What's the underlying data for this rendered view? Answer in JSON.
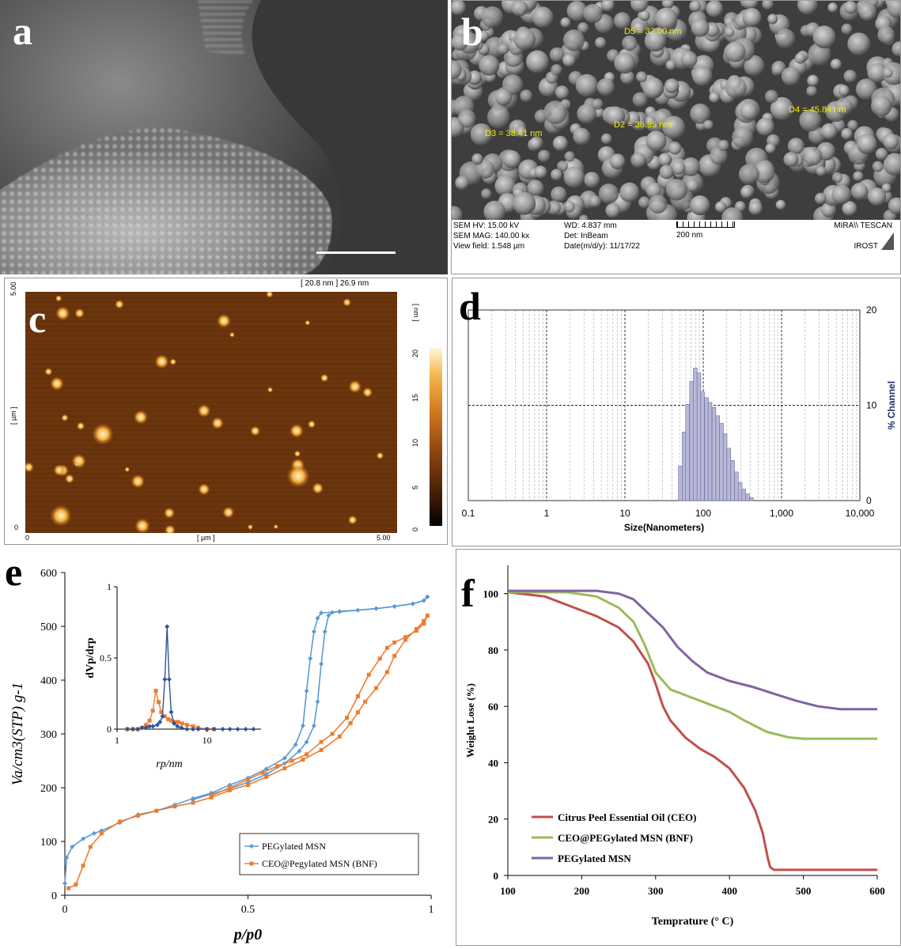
{
  "panels": {
    "a": {
      "label": "a"
    },
    "b": {
      "label": "b",
      "measurements": [
        "D5 = 32.00 nm",
        "D4 = 45.84 nm",
        "D3 = 38.41 nm",
        "D2 = 36.95 nm"
      ],
      "info": {
        "sem_hv": "SEM HV: 15.00 kV",
        "sem_mag": "SEM MAG: 140.00 kx",
        "view_field": "View field: 1.548 µm",
        "wd": "WD: 4.837 mm",
        "det": "Det: InBeam",
        "date": "Date(m/d/y): 11/17/22",
        "scale": "200 nm",
        "brand": "MIRA\\\\ TESCAN",
        "brand2": "IROST"
      }
    },
    "c": {
      "label": "c",
      "top_text": "[ 20.8 nm ] 26.9 nm",
      "x_unit": "[ µm ]",
      "y_unit": "[ µm ]",
      "colorbar_unit": "[ nm ]",
      "x_ticks": [
        "0",
        "5.00"
      ],
      "y_ticks": [
        "5.00",
        "0"
      ],
      "colorbar_ticks": [
        "20",
        "15",
        "10",
        "5",
        "0"
      ]
    },
    "d": {
      "label": "d"
    },
    "e": {
      "label": "e"
    },
    "f": {
      "label": "f"
    }
  },
  "chart_data": [
    {
      "panel": "d",
      "type": "bar",
      "xlabel": "Size(Nanometers)",
      "ylabel": "% Channel",
      "xscale": "log",
      "xlim": [
        0.1,
        10000
      ],
      "ylim": [
        0,
        20
      ],
      "x_ticks": [
        "0.1",
        "1",
        "10",
        "100",
        "1,000",
        "10,000"
      ],
      "y_ticks": [
        "0",
        "10",
        "20"
      ],
      "bins": [
        {
          "x": 51,
          "y": 3.6
        },
        {
          "x": 57,
          "y": 7.2
        },
        {
          "x": 63,
          "y": 10.1
        },
        {
          "x": 71,
          "y": 12.5
        },
        {
          "x": 79,
          "y": 13.9
        },
        {
          "x": 88,
          "y": 13.4
        },
        {
          "x": 98,
          "y": 11.4
        },
        {
          "x": 110,
          "y": 10.8
        },
        {
          "x": 122,
          "y": 10.3
        },
        {
          "x": 137,
          "y": 9.8
        },
        {
          "x": 153,
          "y": 8.9
        },
        {
          "x": 171,
          "y": 8.1
        },
        {
          "x": 190,
          "y": 7.0
        },
        {
          "x": 212,
          "y": 5.5
        },
        {
          "x": 237,
          "y": 4.2
        },
        {
          "x": 265,
          "y": 3.0
        },
        {
          "x": 296,
          "y": 1.9
        },
        {
          "x": 330,
          "y": 1.2
        },
        {
          "x": 368,
          "y": 0.7
        },
        {
          "x": 411,
          "y": 0.3
        }
      ]
    },
    {
      "panel": "e",
      "type": "line",
      "xlabel": "p/p0",
      "ylabel": "Va/cm3(STP) g-1",
      "xlim": [
        0,
        1
      ],
      "ylim": [
        0,
        600
      ],
      "x_ticks": [
        "0",
        "0.5",
        "1"
      ],
      "y_ticks": [
        "0",
        "100",
        "200",
        "300",
        "400",
        "500",
        "600"
      ],
      "legend": "bottom-right",
      "series": [
        {
          "name": "PEGylated MSN",
          "color": "#5b9bd5",
          "adsorption": [
            [
              0.0,
              22
            ],
            [
              0.005,
              70
            ],
            [
              0.02,
              90
            ],
            [
              0.05,
              105
            ],
            [
              0.08,
              115
            ],
            [
              0.1,
              120
            ],
            [
              0.15,
              135
            ],
            [
              0.2,
              150
            ],
            [
              0.25,
              157
            ],
            [
              0.3,
              168
            ],
            [
              0.35,
              180
            ],
            [
              0.4,
              190
            ],
            [
              0.45,
              205
            ],
            [
              0.5,
              218
            ],
            [
              0.55,
              235
            ],
            [
              0.6,
              255
            ],
            [
              0.63,
              280
            ],
            [
              0.65,
              315
            ],
            [
              0.66,
              380
            ],
            [
              0.67,
              440
            ],
            [
              0.68,
              490
            ],
            [
              0.69,
              515
            ],
            [
              0.7,
              525
            ],
            [
              0.75,
              527
            ],
            [
              0.8,
              530
            ],
            [
              0.85,
              533
            ],
            [
              0.9,
              537
            ],
            [
              0.95,
              542
            ],
            [
              0.98,
              548
            ],
            [
              0.99,
              555
            ]
          ],
          "desorption": [
            [
              0.99,
              555
            ],
            [
              0.98,
              548
            ],
            [
              0.95,
              542
            ],
            [
              0.9,
              537
            ],
            [
              0.85,
              533
            ],
            [
              0.8,
              530
            ],
            [
              0.75,
              528
            ],
            [
              0.73,
              526
            ],
            [
              0.72,
              520
            ],
            [
              0.71,
              490
            ],
            [
              0.7,
              430
            ],
            [
              0.69,
              360
            ],
            [
              0.68,
              315
            ],
            [
              0.66,
              285
            ],
            [
              0.64,
              268
            ],
            [
              0.6,
              245
            ],
            [
              0.55,
              225
            ],
            [
              0.5,
              210
            ],
            [
              0.45,
              198
            ],
            [
              0.4,
              188
            ],
            [
              0.35,
              178
            ]
          ]
        },
        {
          "name": "CEO@Pegylated MSN (BNF)",
          "color": "#ed7d31",
          "adsorption": [
            [
              0.01,
              13
            ],
            [
              0.03,
              20
            ],
            [
              0.05,
              55
            ],
            [
              0.07,
              90
            ],
            [
              0.1,
              115
            ],
            [
              0.15,
              137
            ],
            [
              0.2,
              148
            ],
            [
              0.25,
              157
            ],
            [
              0.3,
              165
            ],
            [
              0.35,
              172
            ],
            [
              0.4,
              182
            ],
            [
              0.45,
              195
            ],
            [
              0.5,
              205
            ],
            [
              0.55,
              220
            ],
            [
              0.6,
              236
            ],
            [
              0.65,
              252
            ],
            [
              0.7,
              270
            ],
            [
              0.75,
              295
            ],
            [
              0.78,
              320
            ],
            [
              0.8,
              340
            ],
            [
              0.82,
              360
            ],
            [
              0.85,
              385
            ],
            [
              0.88,
              415
            ],
            [
              0.9,
              445
            ],
            [
              0.93,
              475
            ],
            [
              0.96,
              495
            ],
            [
              0.98,
              510
            ],
            [
              0.99,
              520
            ]
          ],
          "desorption": [
            [
              0.99,
              520
            ],
            [
              0.98,
              505
            ],
            [
              0.96,
              492
            ],
            [
              0.93,
              480
            ],
            [
              0.9,
              470
            ],
            [
              0.88,
              460
            ],
            [
              0.86,
              440
            ],
            [
              0.83,
              410
            ],
            [
              0.8,
              370
            ],
            [
              0.77,
              330
            ],
            [
              0.73,
              300
            ],
            [
              0.7,
              285
            ],
            [
              0.66,
              262
            ],
            [
              0.62,
              250
            ],
            [
              0.58,
              240
            ],
            [
              0.54,
              228
            ],
            [
              0.5,
              215
            ],
            [
              0.45,
              200
            ],
            [
              0.4,
              185
            ]
          ]
        }
      ],
      "inset": {
        "xlabel": "rp/nm",
        "ylabel": "dVp/drp",
        "xscale": "log",
        "xlim": [
          1,
          40
        ],
        "ylim": [
          0,
          1
        ],
        "x_ticks": [
          "1",
          "10"
        ],
        "y_ticks": [
          "0",
          "0.5",
          "1"
        ],
        "series": [
          {
            "name": "PEGylated MSN",
            "color": "#2f5597",
            "points": [
              [
                1.3,
                0.0
              ],
              [
                1.5,
                0.0
              ],
              [
                1.7,
                0.0
              ],
              [
                1.9,
                0.01
              ],
              [
                2.1,
                0.01
              ],
              [
                2.3,
                0.02
              ],
              [
                2.5,
                0.02
              ],
              [
                2.8,
                0.03
              ],
              [
                3.0,
                0.05
              ],
              [
                3.2,
                0.09
              ],
              [
                3.4,
                0.35
              ],
              [
                3.6,
                0.72
              ],
              [
                3.8,
                0.35
              ],
              [
                4.0,
                0.12
              ],
              [
                4.3,
                0.04
              ],
              [
                4.7,
                0.02
              ],
              [
                5.2,
                0.01
              ],
              [
                6,
                0.0
              ],
              [
                7,
                0.0
              ],
              [
                8,
                0.0
              ],
              [
                10,
                0.0
              ],
              [
                12,
                0.0
              ],
              [
                15,
                0.0
              ],
              [
                18,
                0.0
              ],
              [
                22,
                0.0
              ],
              [
                27,
                0.0
              ],
              [
                33,
                0.0
              ]
            ]
          },
          {
            "name": "CEO@Pegylated MSN (BNF)",
            "color": "#ed7d31",
            "points": [
              [
                1.3,
                0.0
              ],
              [
                1.5,
                0.0
              ],
              [
                1.7,
                0.0
              ],
              [
                1.9,
                0.01
              ],
              [
                2.1,
                0.03
              ],
              [
                2.3,
                0.06
              ],
              [
                2.5,
                0.13
              ],
              [
                2.7,
                0.27
              ],
              [
                2.9,
                0.19
              ],
              [
                3.1,
                0.12
              ],
              [
                3.4,
                0.09
              ],
              [
                3.7,
                0.07
              ],
              [
                4.0,
                0.06
              ],
              [
                4.4,
                0.05
              ],
              [
                4.8,
                0.05
              ],
              [
                5.3,
                0.04
              ],
              [
                6,
                0.03
              ],
              [
                7,
                0.02
              ],
              [
                8,
                0.01
              ],
              [
                10,
                0.0
              ],
              [
                12,
                0.0
              ]
            ]
          }
        ]
      }
    },
    {
      "panel": "f",
      "type": "line",
      "xlabel": "Temprature (° C)",
      "ylabel": "Weight Lose (%)",
      "xlim": [
        100,
        600
      ],
      "ylim": [
        0,
        110
      ],
      "x_ticks": [
        "100",
        "200",
        "300",
        "400",
        "500",
        "600"
      ],
      "y_ticks": [
        "0",
        "20",
        "40",
        "60",
        "80",
        "100"
      ],
      "legend": "bottom-left",
      "series": [
        {
          "name": "Citrus Peel Essential Oil (CEO)",
          "color": "#c0504d",
          "points": [
            [
              100,
              100.5
            ],
            [
              150,
              99
            ],
            [
              180,
              96
            ],
            [
              220,
              92
            ],
            [
              250,
              88
            ],
            [
              270,
              83
            ],
            [
              290,
              75
            ],
            [
              300,
              68
            ],
            [
              310,
              60
            ],
            [
              320,
              55
            ],
            [
              340,
              49
            ],
            [
              360,
              45
            ],
            [
              380,
              42
            ],
            [
              400,
              38
            ],
            [
              420,
              31
            ],
            [
              435,
              23
            ],
            [
              445,
              15
            ],
            [
              452,
              6
            ],
            [
              455,
              3
            ],
            [
              460,
              2
            ],
            [
              500,
              2
            ],
            [
              600,
              2
            ]
          ]
        },
        {
          "name": "CEO@PEGylated MSN (BNF)",
          "color": "#9bbb59",
          "points": [
            [
              100,
              100.5
            ],
            [
              180,
              100.5
            ],
            [
              220,
              99
            ],
            [
              250,
              95
            ],
            [
              270,
              90
            ],
            [
              285,
              82
            ],
            [
              300,
              72
            ],
            [
              320,
              66
            ],
            [
              350,
              63
            ],
            [
              380,
              60
            ],
            [
              400,
              58
            ],
            [
              420,
              55
            ],
            [
              450,
              51
            ],
            [
              480,
              49
            ],
            [
              500,
              48.5
            ],
            [
              600,
              48.5
            ]
          ]
        },
        {
          "name": "PEGylated MSN",
          "color": "#8064a2",
          "points": [
            [
              100,
              101
            ],
            [
              220,
              101
            ],
            [
              250,
              100
            ],
            [
              270,
              98
            ],
            [
              290,
              93
            ],
            [
              310,
              88
            ],
            [
              330,
              81
            ],
            [
              350,
              76
            ],
            [
              370,
              72
            ],
            [
              400,
              69
            ],
            [
              430,
              67
            ],
            [
              460,
              64.5
            ],
            [
              490,
              62
            ],
            [
              520,
              60
            ],
            [
              550,
              59
            ],
            [
              600,
              59
            ]
          ]
        }
      ]
    }
  ]
}
